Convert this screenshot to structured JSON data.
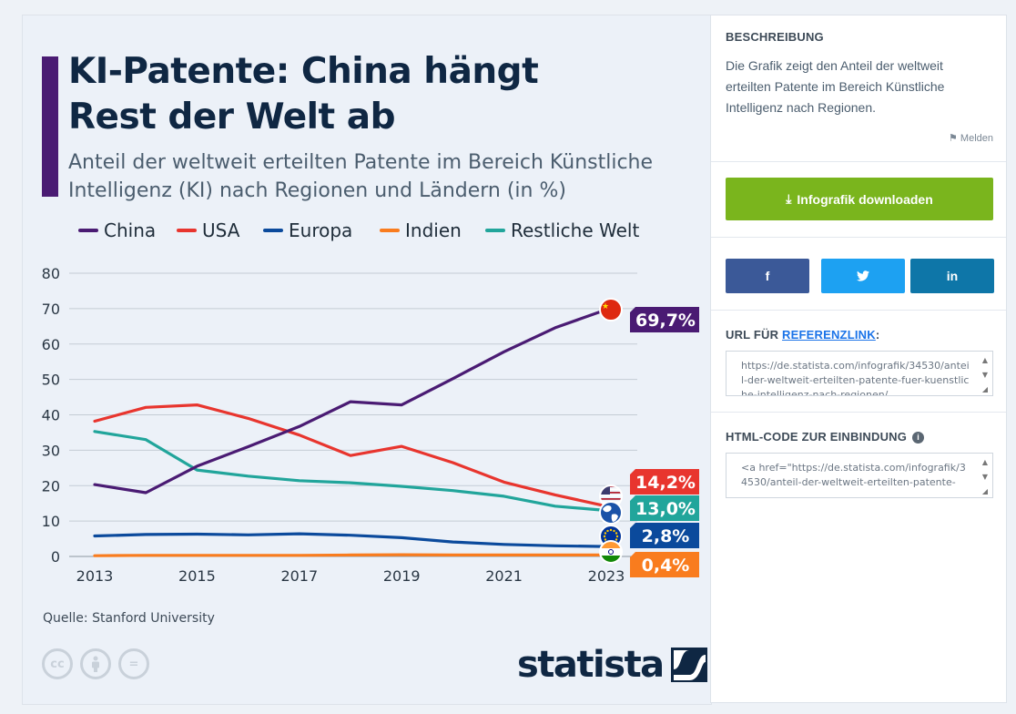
{
  "infographic": {
    "title_line1": "KI-Patente: China hängt",
    "title_line2": "Rest der Welt ab",
    "subtitle": "Anteil der weltweit erteilten Patente im Bereich Künstliche Intelligenz (KI) nach Regionen und Ländern (in %)",
    "source": "Quelle: Stanford University",
    "brand": "statista",
    "license_icons": [
      "cc",
      "attribution-icon",
      "="
    ]
  },
  "chart_data": {
    "type": "line",
    "title": "KI-Patente: China hängt Rest der Welt ab",
    "x": [
      2013,
      2014,
      2015,
      2016,
      2017,
      2018,
      2019,
      2020,
      2021,
      2022,
      2023
    ],
    "x_tick_labels": [
      "2013",
      "2015",
      "2017",
      "2019",
      "2021",
      "2023"
    ],
    "y_ticks": [
      0,
      10,
      20,
      30,
      40,
      50,
      60,
      70,
      80
    ],
    "ylim": [
      0,
      80
    ],
    "xlabel": "",
    "ylabel": "",
    "grid": true,
    "legend_position": "top-left",
    "series": [
      {
        "name": "China",
        "color": "#4a1b73",
        "values": [
          20.3,
          18.0,
          25.5,
          31.0,
          36.7,
          43.7,
          42.8,
          50.2,
          57.8,
          64.6,
          69.7
        ],
        "end_label": "69,7%",
        "flag": "china-flag-icon"
      },
      {
        "name": "USA",
        "color": "#e8352e",
        "values": [
          38.2,
          42.1,
          42.8,
          39.0,
          34.3,
          28.5,
          31.1,
          26.5,
          21.0,
          17.4,
          14.2
        ],
        "end_label": "14,2%",
        "flag": "usa-flag-icon"
      },
      {
        "name": "Europa",
        "color": "#0b4a9c",
        "values": [
          5.8,
          6.2,
          6.3,
          6.1,
          6.4,
          6.0,
          5.3,
          4.1,
          3.4,
          3.0,
          2.8
        ],
        "end_label": "2,8%",
        "flag": "eu-flag-icon"
      },
      {
        "name": "Indien",
        "color": "#f97c1e",
        "values": [
          0.2,
          0.3,
          0.3,
          0.3,
          0.3,
          0.4,
          0.5,
          0.4,
          0.4,
          0.4,
          0.4
        ],
        "end_label": "0,4%",
        "flag": "india-flag-icon"
      },
      {
        "name": "Restliche Welt",
        "color": "#21a59b",
        "values": [
          35.3,
          33.0,
          24.4,
          22.7,
          21.4,
          20.8,
          19.8,
          18.6,
          17.0,
          14.2,
          13.0
        ],
        "end_label": "13,0%",
        "flag": "globe-icon"
      }
    ]
  },
  "sidebar": {
    "description_title": "BESCHREIBUNG",
    "description_text": "Die Grafik zeigt den Anteil der weltweit erteilten Patente im Bereich Künstliche Intelligenz nach Regionen.",
    "report_label": "Melden",
    "download_label": "Infografik downloaden",
    "share_facebook": "f",
    "share_twitter": "t",
    "share_linkedin": "in",
    "url_title_prefix": "URL FÜR",
    "url_title_link": "REFERENZLINK",
    "url_title_suffix": ":",
    "url_value": "https://de.statista.com/infografik/34530/anteil-der-weltweit-erteilten-patente-fuer-kuenstliche-intelligenz-nach-regionen/",
    "embed_title": "HTML-CODE ZUR EINBINDUNG",
    "embed_value": "<a href=\"https://de.statista.com/infografik/34530/anteil-der-weltweit-erteilten-patente-"
  },
  "colors": {
    "brand_navy": "#0f2743",
    "accent_purple": "#4a1b73",
    "download_green": "#7ab51d"
  }
}
